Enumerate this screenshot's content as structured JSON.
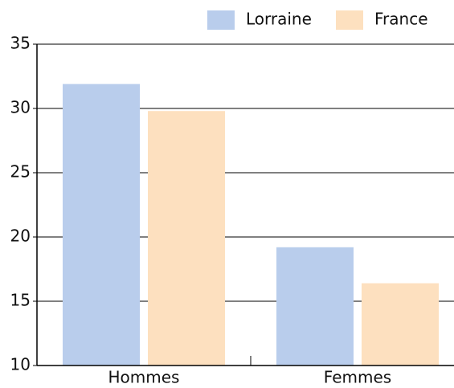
{
  "chart_data": {
    "type": "bar",
    "categories": [
      "Hommes",
      "Femmes"
    ],
    "series": [
      {
        "name": "Lorraine",
        "color": "#b9cdec",
        "values": [
          31.9,
          19.2
        ]
      },
      {
        "name": "France",
        "color": "#fde0bf",
        "values": [
          29.8,
          16.4
        ]
      }
    ],
    "ylim": [
      10,
      35
    ],
    "yticks": [
      10,
      15,
      20,
      25,
      30,
      35
    ],
    "grid": true,
    "legend": "top-right"
  }
}
